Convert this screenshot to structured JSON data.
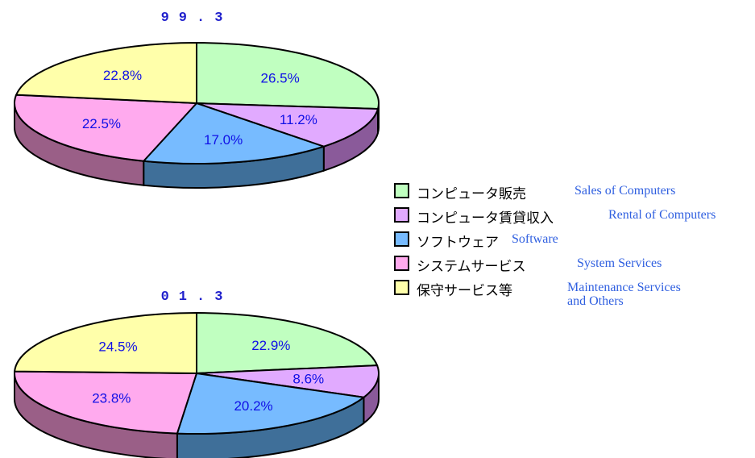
{
  "chart_data": [
    {
      "type": "pie",
      "title": "99.3",
      "slices": [
        {
          "label_jp": "コンピュータ販売",
          "label_en": "Sales of Computers",
          "value": 26.5,
          "value_label": "26.5%",
          "color": "#c0ffc0",
          "side": "#6fb06f"
        },
        {
          "label_jp": "コンピュータ賃貸収入",
          "label_en": "Rental of Computers",
          "value": 11.2,
          "value_label": "11.2%",
          "color": "#e1aaff",
          "side": "#8a5a9a"
        },
        {
          "label_jp": "ソフトウェア",
          "label_en": "Software",
          "value": 17.0,
          "value_label": "17.0%",
          "color": "#77bbff",
          "side": "#3f6f99"
        },
        {
          "label_jp": "システムサービス",
          "label_en": "System Services",
          "value": 22.5,
          "value_label": "22.5%",
          "color": "#ffaaee",
          "side": "#9a5f87"
        },
        {
          "label_jp": "保守サービス等",
          "label_en": "Maintenance Services and Others",
          "value": 22.8,
          "value_label": "22.8%",
          "color": "#ffffaa",
          "side": "#a8a860"
        }
      ]
    },
    {
      "type": "pie",
      "title": "01.3",
      "slices": [
        {
          "label_jp": "コンピュータ販売",
          "label_en": "Sales of Computers",
          "value": 22.9,
          "value_label": "22.9%",
          "color": "#c0ffc0",
          "side": "#6fb06f"
        },
        {
          "label_jp": "コンピュータ賃貸収入",
          "label_en": "Rental of Computers",
          "value": 8.6,
          "value_label": "8.6%",
          "color": "#e1aaff",
          "side": "#8a5a9a"
        },
        {
          "label_jp": "ソフトウェア",
          "label_en": "Software",
          "value": 20.2,
          "value_label": "20.2%",
          "color": "#77bbff",
          "side": "#3f6f99"
        },
        {
          "label_jp": "システムサービス",
          "label_en": "System Services",
          "value": 23.8,
          "value_label": "23.8%",
          "color": "#ffaaee",
          "side": "#9a5f87"
        },
        {
          "label_jp": "保守サービス等",
          "label_en": "Maintenance Services and Others",
          "value": 24.5,
          "value_label": "24.5%",
          "color": "#ffffaa",
          "side": "#a8a860"
        }
      ]
    }
  ],
  "legend": {
    "items": [
      {
        "jp": "コンピュータ販売",
        "en": "Sales of Computers",
        "color": "#c0ffc0"
      },
      {
        "jp": "コンピュータ賃貸収入",
        "en": "Rental of Computers",
        "color": "#e1aaff"
      },
      {
        "jp": "ソフトウェア",
        "en": "Software",
        "color": "#77bbff"
      },
      {
        "jp": "システムサービス",
        "en": "System Services",
        "color": "#ffaaee"
      },
      {
        "jp": "保守サービス等",
        "en": "Maintenance Services",
        "en2": "and Others",
        "color": "#ffffaa"
      }
    ]
  }
}
